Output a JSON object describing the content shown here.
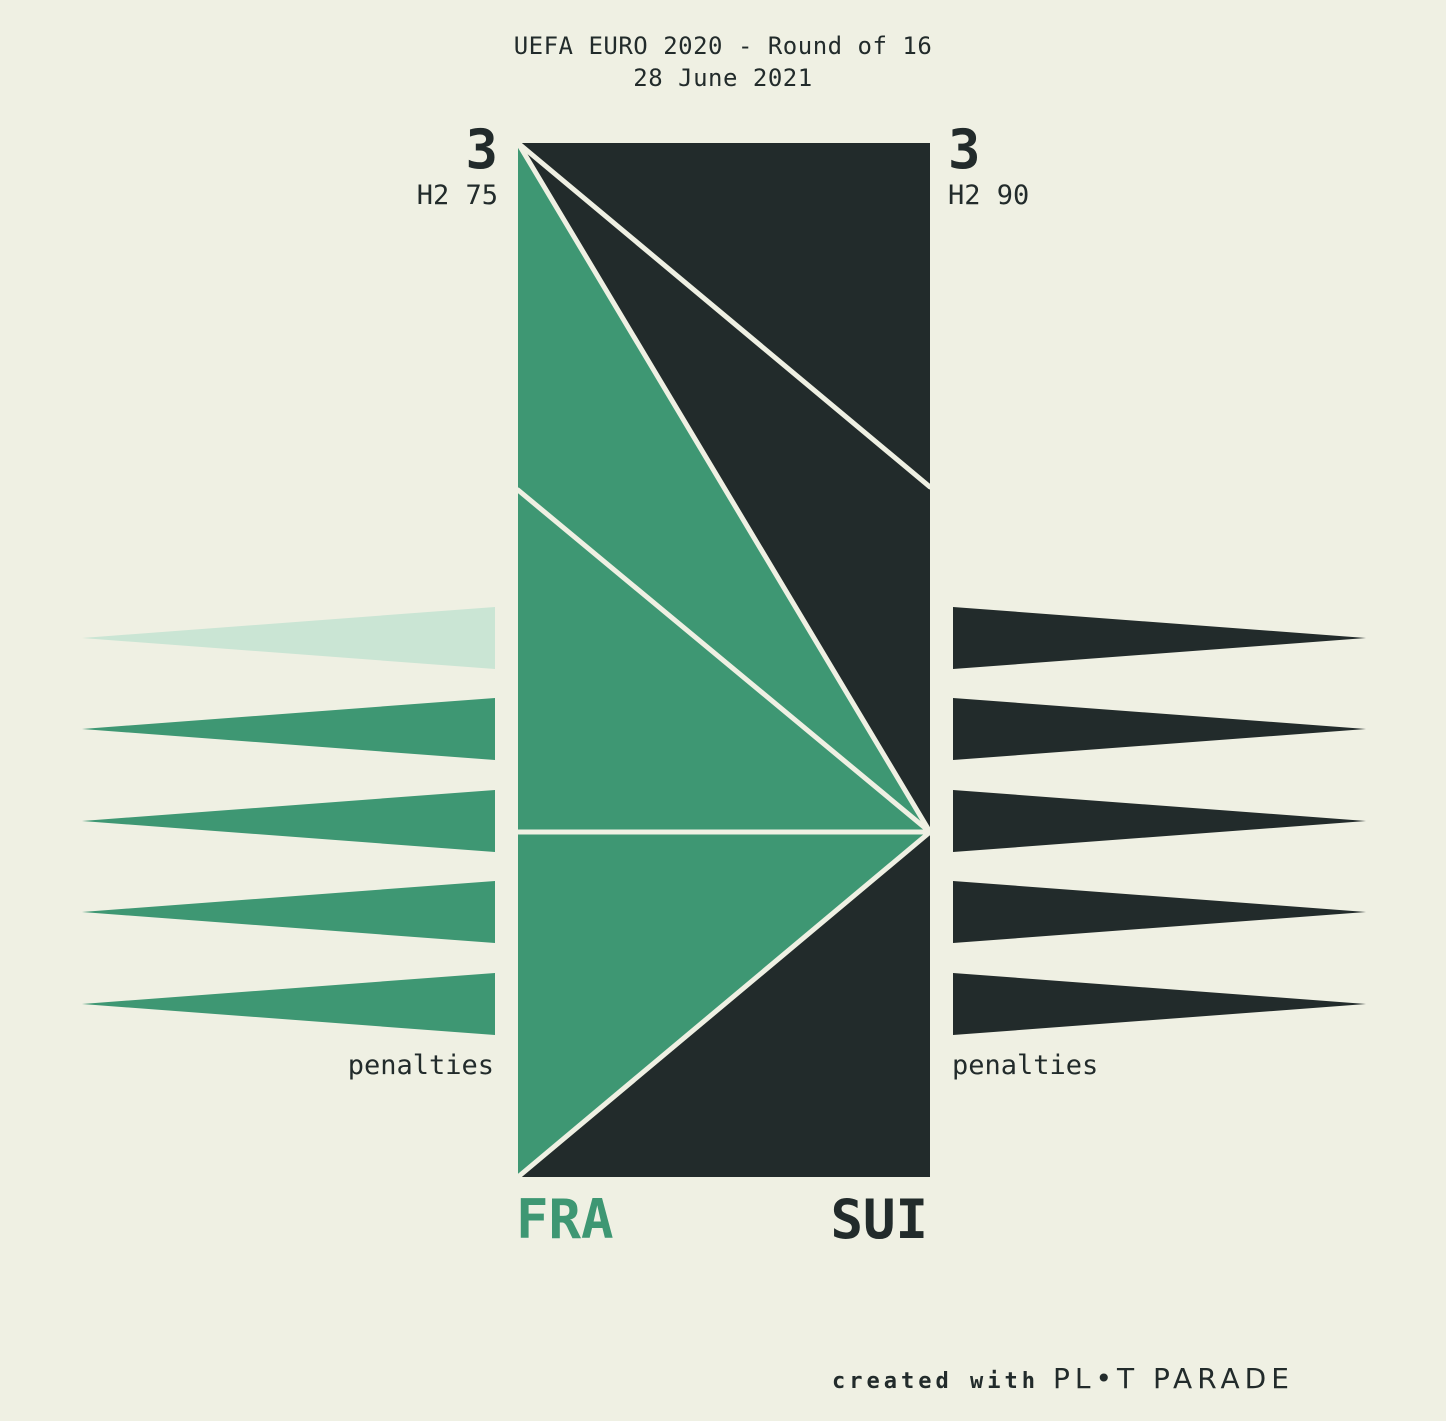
{
  "header": {
    "competition": "UEFA EURO 2020 - Round of 16",
    "date": "28 June 2021"
  },
  "teams": {
    "left": {
      "name": "FRA",
      "score": "3",
      "timing": "H2 75",
      "color": "#3e9773"
    },
    "right": {
      "name": "SUI",
      "score": "3",
      "timing": "H2 90",
      "color": "#222b2b"
    }
  },
  "penalties": {
    "label": "penalties",
    "left": [
      {
        "scored": false
      },
      {
        "scored": true
      },
      {
        "scored": true
      },
      {
        "scored": true
      },
      {
        "scored": true
      }
    ],
    "right": [
      {
        "scored": true
      },
      {
        "scored": true
      },
      {
        "scored": true
      },
      {
        "scored": true
      },
      {
        "scored": true
      }
    ]
  },
  "colors": {
    "background": "#eff0e3",
    "fra": "#3e9773",
    "sui": "#222b2b",
    "missed": "#cae5d4",
    "divider": "#eff0e3"
  },
  "footer": {
    "prefix": "created with",
    "brand": "PL•T PARADE"
  }
}
